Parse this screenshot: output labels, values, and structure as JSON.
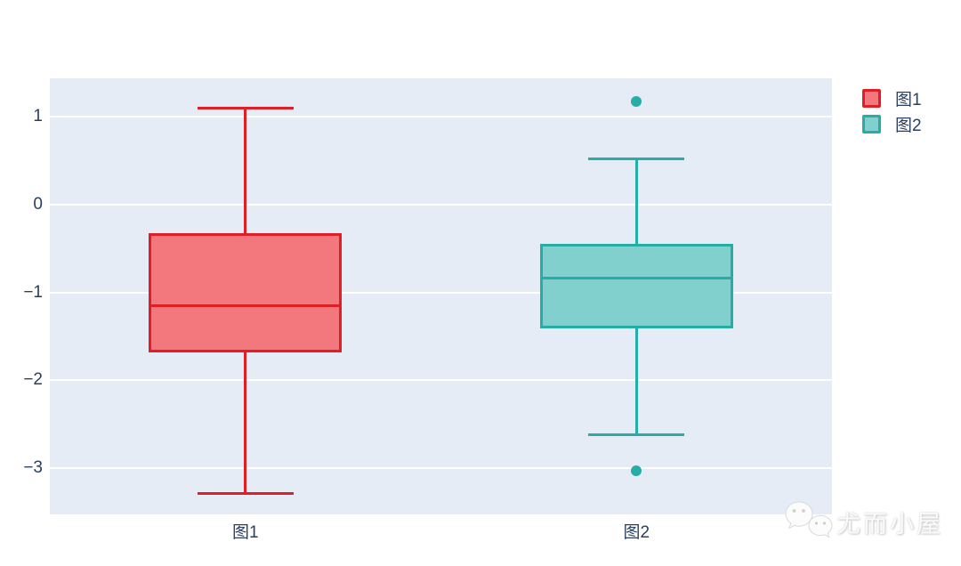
{
  "figure": {
    "background": "#ffffff",
    "plot_background": "#e5ecf6",
    "gridline_color": "#ffffff",
    "tick_text_color": "#2a3f5f"
  },
  "legend": {
    "items": [
      {
        "label": "图1",
        "line_color": "#e01e26",
        "fill_color": "#f3787e"
      },
      {
        "label": "图2",
        "line_color": "#25ada6",
        "fill_color": "#82d0cd"
      }
    ]
  },
  "watermark": {
    "icon": "wechat-icon",
    "text": "尤而小屋"
  },
  "chart_data": {
    "type": "box",
    "orientation": "vertical",
    "title": "",
    "xlabel": "",
    "ylabel": "",
    "grid": true,
    "legend_position": "top-right",
    "categories": [
      "图1",
      "图2"
    ],
    "yticks": [
      1,
      0,
      -1,
      -2,
      -3
    ],
    "ylim": [
      -3.53,
      1.44
    ],
    "series": [
      {
        "name": "图1",
        "color": "#e01e26",
        "fill": "#f3787e",
        "whisker_low": -3.29,
        "q1": -1.68,
        "median": -1.15,
        "q3": -0.32,
        "whisker_high": 1.1,
        "outliers": []
      },
      {
        "name": "图2",
        "color": "#25ada6",
        "fill": "#82d0cd",
        "whisker_low": -2.62,
        "q1": -1.41,
        "median": -0.84,
        "q3": -0.45,
        "whisker_high": 0.52,
        "outliers": [
          1.18,
          -3.03
        ]
      }
    ]
  }
}
